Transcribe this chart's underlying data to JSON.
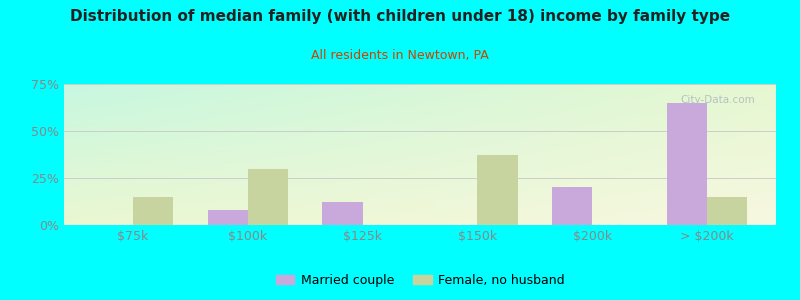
{
  "title": "Distribution of median family (with children under 18) income by family type",
  "subtitle": "All residents in Newtown, PA",
  "categories": [
    "$75k",
    "$100k",
    "$125k",
    "$150k",
    "$200k",
    "> $200k"
  ],
  "married_couple": [
    0,
    8,
    12,
    0,
    20,
    65
  ],
  "female_no_husband": [
    15,
    30,
    0,
    37,
    0,
    15
  ],
  "married_color": "#c9a8dc",
  "female_color": "#c8d4a0",
  "title_color": "#222222",
  "subtitle_color": "#cc4400",
  "tick_color": "#888888",
  "ylim": [
    0,
    75
  ],
  "yticks": [
    0,
    25,
    50,
    75
  ],
  "ytick_labels": [
    "0%",
    "25%",
    "50%",
    "75%"
  ],
  "bar_width": 0.35,
  "legend_married": "Married couple",
  "legend_female": "Female, no husband",
  "watermark": "City-Data.com",
  "figure_bg": "#00ffff",
  "plot_bg_tl": [
    0.78,
    0.97,
    0.88
  ],
  "plot_bg_tr": [
    0.9,
    0.97,
    0.82
  ],
  "plot_bg_bl": [
    0.92,
    0.97,
    0.82
  ],
  "plot_bg_br": [
    0.97,
    0.97,
    0.88
  ]
}
